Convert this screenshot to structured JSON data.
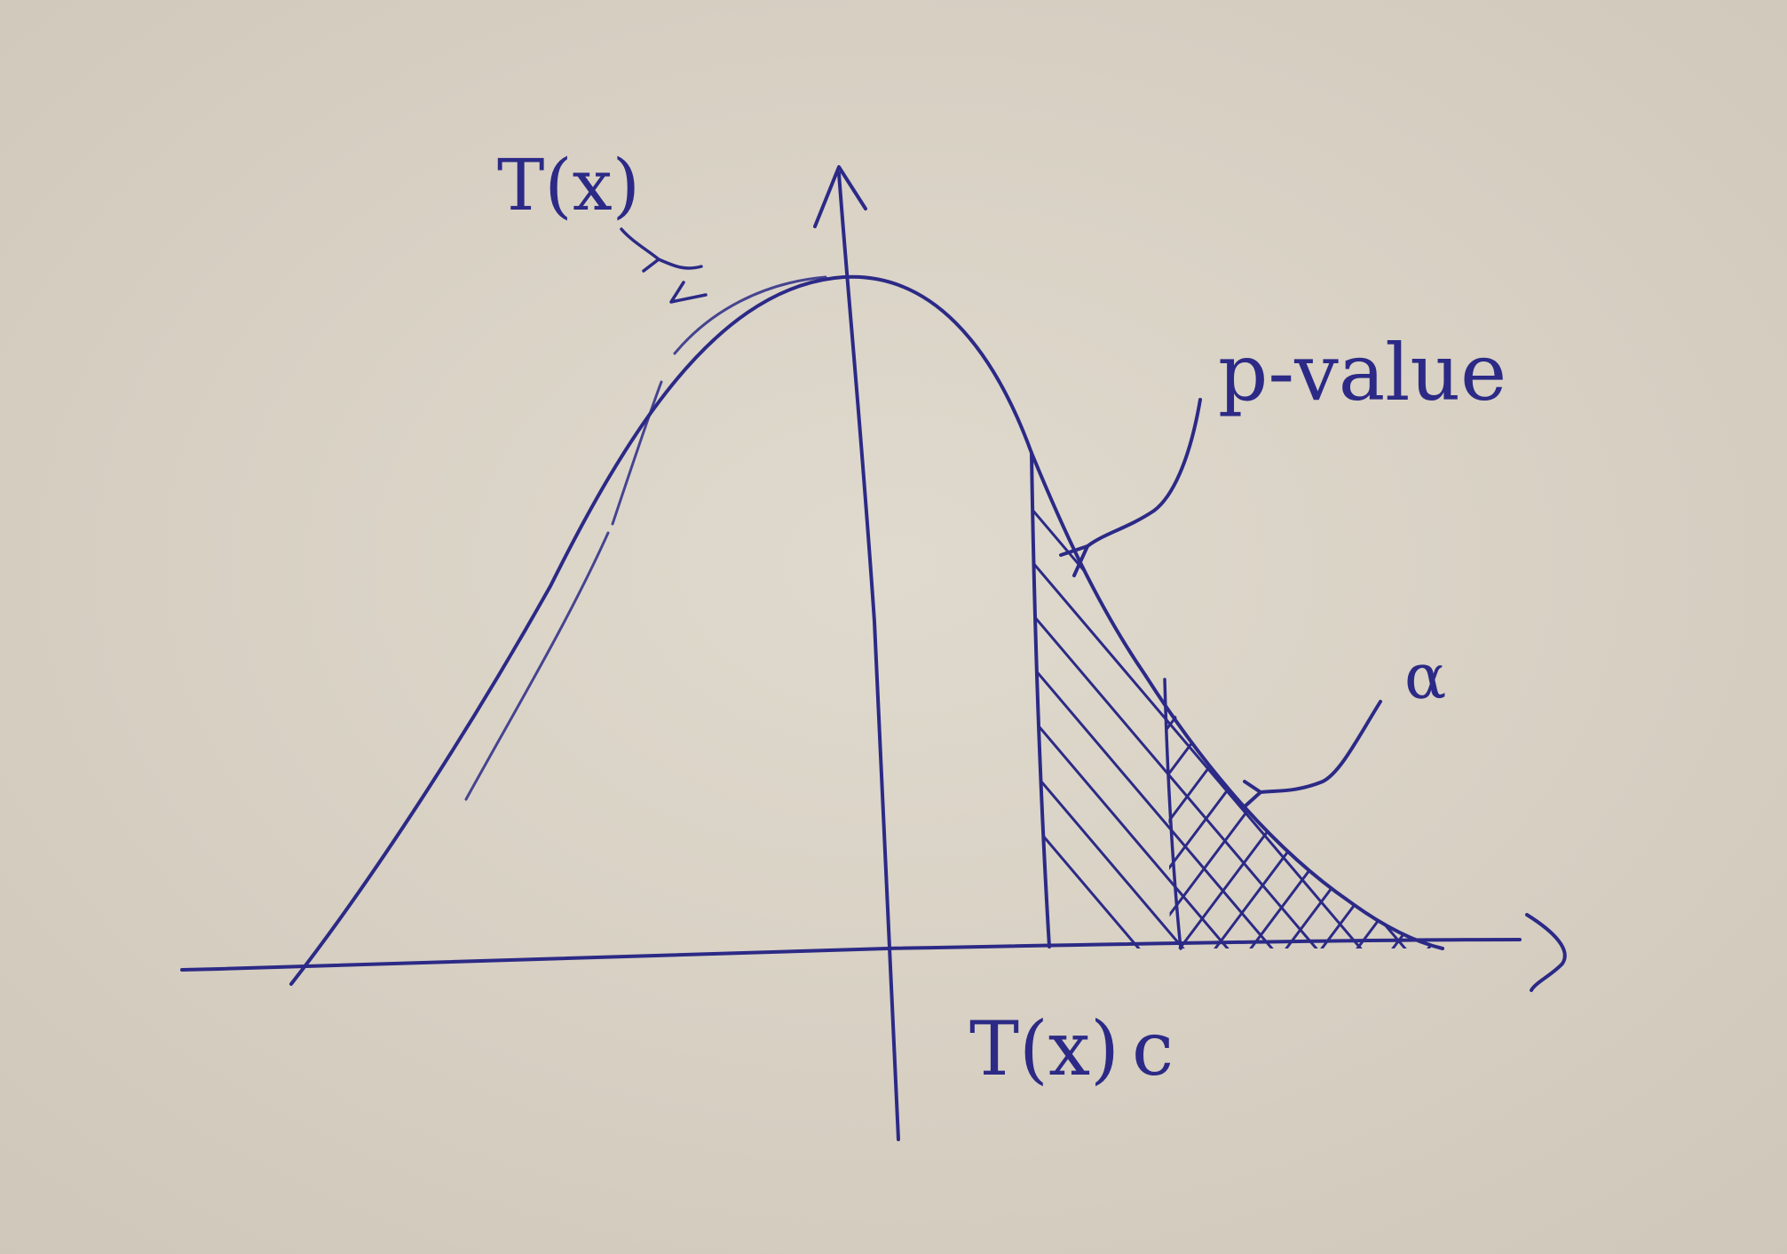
{
  "labels": {
    "curve_label": "T(x)",
    "p_value_label": "p-value",
    "alpha_label": "α",
    "statistic_label": "T(x)",
    "critical_label": "c"
  },
  "colors": {
    "paper": "#d8d1c4",
    "ink": "#2c2a86"
  }
}
